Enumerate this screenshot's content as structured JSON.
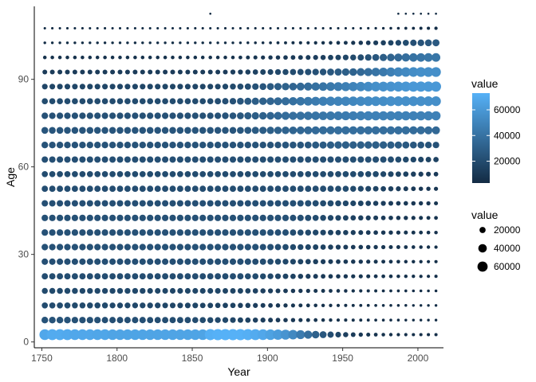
{
  "chart_data": {
    "type": "scatter",
    "title": "",
    "xlabel": "Year",
    "ylabel": "Age",
    "xlim": [
      1745,
      2017
    ],
    "ylim": [
      -2,
      115
    ],
    "x_ticks": [
      1750,
      1800,
      1850,
      1900,
      1950,
      2000
    ],
    "x_tick_labels": [
      "1750",
      "1800",
      "1850",
      "1900",
      "1950",
      "2000"
    ],
    "y_ticks": [
      0,
      30,
      60,
      90
    ],
    "y_tick_labels": [
      "0",
      "30",
      "60",
      "90"
    ],
    "grid": false,
    "x_start": 1752,
    "x_end": 2012,
    "x_step": 5,
    "age_start": 2.5,
    "age_step": 5,
    "rows": [
      [
        68000,
        70000,
        70000,
        69000,
        68000,
        68000,
        68000,
        67000,
        67000,
        66000,
        66000,
        66000,
        66000,
        66000,
        66000,
        66000,
        66000,
        66000,
        66000,
        66000,
        66000,
        66000,
        72000,
        73000,
        73000,
        73000,
        73000,
        72000,
        70000,
        68000,
        65000,
        62000,
        58000,
        52000,
        45000,
        38000,
        31000,
        26000,
        21000,
        17000,
        14000,
        11500,
        9500,
        8500,
        7600,
        7000,
        6500,
        6200,
        6000,
        5800,
        5800,
        5800,
        5700
      ],
      [
        24000,
        24000,
        24000,
        24000,
        23000,
        23000,
        23000,
        23000,
        22000,
        22000,
        22000,
        22000,
        22000,
        22000,
        21000,
        21000,
        21000,
        21000,
        21000,
        21000,
        20000,
        20000,
        19000,
        18000,
        18000,
        17000,
        16000,
        15000,
        14000,
        13000,
        12000,
        11000,
        10000,
        9500,
        8700,
        8100,
        7600,
        7000,
        6500,
        6100,
        5900,
        5600,
        5400,
        5200,
        5000,
        4900,
        4800,
        4700,
        4600,
        4500,
        4500,
        4500,
        4500
      ],
      [
        20000,
        20000,
        20000,
        20000,
        19000,
        19000,
        19000,
        19000,
        19000,
        18000,
        18000,
        18000,
        18000,
        18000,
        18000,
        18000,
        17000,
        17000,
        17000,
        17000,
        17000,
        16000,
        16000,
        15000,
        15000,
        15000,
        14000,
        14000,
        13000,
        12000,
        11000,
        10000,
        9300,
        8700,
        8100,
        7600,
        7100,
        6700,
        6300,
        6000,
        5700,
        5500,
        5300,
        5100,
        5000,
        4900,
        4800,
        4700,
        4600,
        4500,
        4500,
        4500,
        4500
      ],
      [
        19000,
        19000,
        19000,
        19000,
        19000,
        18000,
        18000,
        18000,
        18000,
        18000,
        18000,
        18000,
        18000,
        18000,
        17000,
        17000,
        17000,
        17000,
        17000,
        17000,
        17000,
        17000,
        17000,
        17000,
        16000,
        16000,
        16000,
        15000,
        15000,
        14000,
        13000,
        12000,
        11000,
        10000,
        9500,
        9000,
        8500,
        8000,
        7600,
        7200,
        6800,
        6400,
        6100,
        5800,
        5500,
        5300,
        5100,
        5000,
        4900,
        4800,
        4800,
        4700,
        4700
      ],
      [
        21000,
        21000,
        21000,
        21000,
        21000,
        21000,
        21000,
        21000,
        21000,
        21000,
        21000,
        21000,
        21000,
        21000,
        21000,
        21000,
        21000,
        21000,
        21000,
        21000,
        21000,
        21000,
        21000,
        21000,
        21000,
        21000,
        21000,
        20000,
        20000,
        19000,
        18000,
        17000,
        16000,
        15000,
        14000,
        13000,
        12000,
        11000,
        10500,
        10000,
        9500,
        9100,
        8700,
        8300,
        7900,
        7500,
        7200,
        6900,
        6600,
        6400,
        6200,
        6000,
        5800
      ],
      [
        22000,
        22000,
        22000,
        22000,
        22000,
        22000,
        22000,
        22000,
        22000,
        22000,
        22000,
        22000,
        22000,
        22000,
        22000,
        22000,
        22000,
        22000,
        22000,
        22000,
        22000,
        22000,
        22000,
        22000,
        22000,
        22000,
        22000,
        22000,
        21000,
        21000,
        20000,
        19000,
        18000,
        17000,
        16000,
        15000,
        14000,
        13000,
        12000,
        11000,
        10500,
        10000,
        9500,
        9000,
        8500,
        8000,
        7600,
        7200,
        6900,
        6600,
        6300,
        6100,
        5900
      ],
      [
        23000,
        23000,
        23000,
        23000,
        23000,
        23000,
        23000,
        23000,
        23000,
        23000,
        23000,
        23000,
        23000,
        23000,
        23000,
        23000,
        23000,
        23000,
        23000,
        23000,
        23000,
        23000,
        23000,
        23000,
        23000,
        23000,
        23000,
        23000,
        23000,
        22000,
        22000,
        21000,
        20000,
        19000,
        18000,
        17000,
        16000,
        15000,
        14000,
        13000,
        12000,
        11000,
        10500,
        10000,
        9500,
        9000,
        8500,
        8000,
        7600,
        7200,
        6800,
        6500,
        6200
      ],
      [
        23000,
        23000,
        23000,
        23000,
        23000,
        23000,
        23000,
        23000,
        23000,
        23000,
        23000,
        23000,
        23000,
        23000,
        23000,
        23000,
        23000,
        23000,
        23000,
        23000,
        23000,
        23000,
        23000,
        23000,
        23000,
        23000,
        23000,
        23000,
        23000,
        23000,
        23000,
        22000,
        22000,
        21000,
        20000,
        19000,
        18000,
        17000,
        16000,
        15000,
        14000,
        13000,
        12000,
        11000,
        10500,
        10000,
        9500,
        9000,
        8500,
        8000,
        7600,
        7200,
        6800
      ],
      [
        23000,
        23000,
        23000,
        23000,
        23000,
        23000,
        23000,
        23000,
        23000,
        23000,
        23000,
        23000,
        23000,
        23000,
        23000,
        23000,
        23000,
        23000,
        23000,
        23000,
        23000,
        23000,
        23000,
        23000,
        23000,
        23000,
        23000,
        23000,
        23000,
        23000,
        23000,
        23000,
        23000,
        22000,
        22000,
        21000,
        20000,
        19000,
        18000,
        17000,
        16000,
        15000,
        14000,
        13000,
        12000,
        11000,
        10500,
        10000,
        9500,
        9000,
        8500,
        8000,
        7600
      ],
      [
        22000,
        22000,
        22000,
        22000,
        22000,
        22000,
        22000,
        22000,
        22000,
        22000,
        22000,
        22000,
        22000,
        22000,
        22000,
        22000,
        22000,
        22000,
        22000,
        22000,
        22000,
        22000,
        22000,
        22000,
        22000,
        22000,
        22000,
        22000,
        22000,
        22000,
        22000,
        22000,
        22000,
        22000,
        22000,
        22000,
        21000,
        20000,
        20000,
        19000,
        18000,
        17000,
        16000,
        15000,
        14000,
        13000,
        12000,
        11000,
        10500,
        10000,
        9500,
        9000,
        8500
      ],
      [
        21000,
        21000,
        21000,
        21000,
        21000,
        21000,
        21000,
        21000,
        21000,
        21000,
        21000,
        21000,
        21000,
        21000,
        21000,
        21000,
        21000,
        21000,
        21000,
        21000,
        21000,
        21000,
        21000,
        21000,
        21000,
        21000,
        21000,
        21000,
        21000,
        21000,
        21000,
        21000,
        21000,
        21000,
        21000,
        21000,
        21000,
        21000,
        21000,
        20000,
        20000,
        19000,
        18000,
        17000,
        16000,
        15000,
        14000,
        13000,
        12000,
        11000,
        10000,
        9500,
        9000
      ],
      [
        20000,
        20000,
        20000,
        20000,
        20000,
        20000,
        20000,
        20000,
        20000,
        20000,
        20000,
        20000,
        20000,
        20000,
        20000,
        20000,
        20000,
        20000,
        20000,
        20000,
        20000,
        20000,
        20000,
        20000,
        20000,
        20000,
        20000,
        20000,
        20000,
        20000,
        20000,
        20000,
        20000,
        20000,
        20000,
        20000,
        20000,
        20000,
        20000,
        20000,
        20000,
        20000,
        20000,
        19000,
        19000,
        18000,
        17000,
        16000,
        15000,
        14000,
        13000,
        12000,
        11000
      ],
      [
        22000,
        22000,
        22000,
        22000,
        22000,
        22000,
        22000,
        22000,
        22000,
        22000,
        22000,
        22000,
        22000,
        22000,
        22000,
        22000,
        22000,
        22000,
        22000,
        22000,
        22000,
        22000,
        22000,
        22000,
        22000,
        22000,
        22000,
        22000,
        22000,
        22000,
        22000,
        22000,
        22000,
        22000,
        22000,
        22000,
        22000,
        22000,
        22000,
        22000,
        22000,
        22000,
        22000,
        22000,
        22000,
        22000,
        21000,
        20000,
        19000,
        18000,
        17000,
        16000,
        15000
      ],
      [
        24000,
        24000,
        24000,
        24000,
        24000,
        24000,
        24000,
        24000,
        24000,
        24000,
        24000,
        24000,
        24000,
        24000,
        24000,
        24000,
        24000,
        24000,
        24000,
        24000,
        24000,
        24000,
        24000,
        24000,
        24000,
        24000,
        24000,
        24000,
        24000,
        24000,
        24000,
        24000,
        25000,
        25000,
        25000,
        26000,
        27000,
        28000,
        29000,
        30000,
        30000,
        30000,
        30000,
        30000,
        30000,
        30000,
        29000,
        28000,
        27000,
        26000,
        25000,
        24000,
        23000
      ],
      [
        25000,
        25000,
        25000,
        25000,
        25000,
        25000,
        25000,
        25000,
        25000,
        25000,
        25000,
        25000,
        25000,
        25000,
        25000,
        25000,
        25000,
        25000,
        25000,
        25000,
        25000,
        25000,
        25000,
        25000,
        25000,
        25000,
        26000,
        27000,
        28000,
        29000,
        30000,
        31000,
        32000,
        33000,
        34000,
        35000,
        36000,
        37000,
        37000,
        38000,
        38000,
        38000,
        38000,
        38000,
        38000,
        38000,
        38000,
        38000,
        38000,
        37000,
        37000,
        36000,
        35000
      ],
      [
        23000,
        23000,
        23000,
        23000,
        23000,
        23000,
        23000,
        23000,
        23000,
        23000,
        23000,
        23000,
        23000,
        23000,
        23000,
        23000,
        23000,
        23000,
        23000,
        23000,
        23000,
        23000,
        23000,
        23000,
        24000,
        25000,
        26000,
        28000,
        29000,
        31000,
        33000,
        35000,
        37000,
        38000,
        39000,
        40000,
        41000,
        42000,
        43000,
        44000,
        45000,
        46000,
        47000,
        48000,
        48000,
        48000,
        48000,
        48000,
        48000,
        48000,
        48000,
        48000,
        48000
      ],
      [
        20000,
        20000,
        20000,
        20000,
        20000,
        20000,
        20000,
        20000,
        20000,
        20000,
        20000,
        20000,
        20000,
        20000,
        20000,
        20000,
        20000,
        20000,
        20000,
        20000,
        20000,
        20000,
        20000,
        21000,
        22000,
        23000,
        25000,
        27000,
        29000,
        31000,
        33000,
        35000,
        37000,
        39000,
        41000,
        43000,
        45000,
        47000,
        48000,
        49000,
        50000,
        51000,
        52000,
        53000,
        54000,
        54000,
        55000,
        55000,
        55000,
        55000,
        55000,
        55000,
        55000
      ],
      [
        17000,
        17000,
        17000,
        17000,
        17000,
        17000,
        17000,
        17000,
        17000,
        17000,
        17000,
        17000,
        17000,
        17000,
        17000,
        17000,
        17000,
        17000,
        17000,
        17000,
        17000,
        17000,
        17000,
        17000,
        18000,
        19000,
        20000,
        21000,
        23000,
        25000,
        27000,
        29000,
        31000,
        33000,
        35000,
        37000,
        39000,
        41000,
        43000,
        45000,
        47000,
        49000,
        51000,
        53000,
        55000,
        56000,
        57000,
        58000,
        59000,
        60000,
        60000,
        60000,
        60000
      ],
      [
        12000,
        12000,
        12000,
        12000,
        12000,
        12000,
        12000,
        12000,
        12000,
        12000,
        12000,
        12000,
        12000,
        12000,
        12000,
        12000,
        12000,
        12000,
        12000,
        12000,
        12000,
        12000,
        12000,
        12000,
        12000,
        13000,
        13000,
        14000,
        15000,
        16000,
        17000,
        18000,
        19000,
        20000,
        21000,
        22000,
        23000,
        24000,
        26000,
        28000,
        30000,
        32000,
        35000,
        38000,
        41000,
        44000,
        47000,
        50000,
        52000,
        54000,
        55000,
        55000,
        55000
      ],
      [
        7000,
        7000,
        7000,
        7000,
        7000,
        7000,
        7000,
        7000,
        7000,
        7000,
        7000,
        7000,
        7000,
        7000,
        7000,
        7000,
        7000,
        7000,
        7000,
        7000,
        7000,
        7000,
        7000,
        7000,
        7000,
        7000,
        7500,
        8000,
        8500,
        9000,
        9500,
        10000,
        10500,
        11000,
        11500,
        12000,
        13000,
        14000,
        15000,
        16000,
        17000,
        19000,
        21000,
        23000,
        26000,
        29000,
        32000,
        35000,
        38000,
        40000,
        41000,
        42000,
        42000
      ],
      [
        4500,
        4500,
        4500,
        4500,
        4500,
        4500,
        4500,
        4500,
        4500,
        4500,
        4500,
        4500,
        4500,
        4500,
        4500,
        4500,
        4500,
        4500,
        4500,
        4500,
        4500,
        4500,
        4500,
        4500,
        4500,
        4500,
        4500,
        4600,
        4700,
        4800,
        5000,
        5200,
        5400,
        5600,
        5800,
        6000,
        6300,
        6600,
        7000,
        7500,
        8000,
        9000,
        10000,
        11000,
        12500,
        14000,
        16000,
        18000,
        20000,
        22000,
        24000,
        26000,
        27000
      ],
      [
        4000,
        4000,
        4000,
        4000,
        4000,
        4000,
        4000,
        4000,
        4000,
        4000,
        4000,
        4000,
        4000,
        4000,
        4000,
        4000,
        4000,
        4000,
        4000,
        4000,
        4000,
        4000,
        4000,
        4000,
        4000,
        4000,
        4000,
        4000,
        4000,
        4000,
        4000,
        4000,
        4000,
        4000,
        4000,
        4000,
        4000,
        4000,
        4000,
        4000,
        4000,
        4000,
        4000,
        4100,
        4200,
        4400,
        4600,
        4800,
        5000,
        5300,
        5600,
        5900,
        6200
      ]
    ],
    "age_107_5_years": [
      1757,
      1767,
      1777,
      1792,
      1852,
      1857,
      1872,
      1882,
      1892,
      1897,
      1912,
      1917,
      1922,
      1937,
      1942,
      1947,
      1952,
      1957,
      1962,
      1967,
      1972,
      1977,
      1982,
      1987,
      1992,
      1997,
      2002,
      2007,
      2012
    ],
    "age_112_5_years": [
      1862,
      1987,
      1992,
      1997,
      2002,
      2007,
      2012
    ],
    "sparse_value": 3500,
    "color_scale": {
      "title": "value",
      "low": "#132B43",
      "high": "#56B1F7",
      "min": 3000,
      "max": 73000,
      "breaks": [
        20000,
        40000,
        60000
      ],
      "break_labels": [
        "20000",
        "40000",
        "60000"
      ]
    },
    "size_scale": {
      "title": "value",
      "breaks": [
        20000,
        40000,
        60000
      ],
      "break_labels": [
        "20000",
        "40000",
        "60000"
      ]
    }
  }
}
